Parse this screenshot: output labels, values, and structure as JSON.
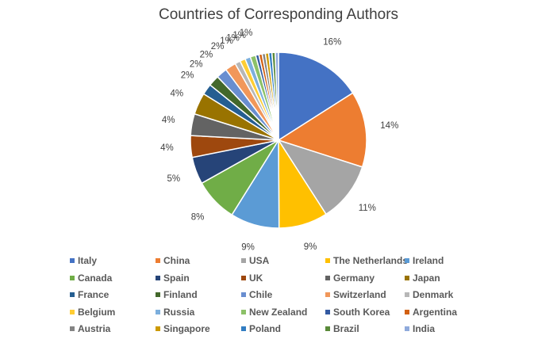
{
  "chart_data": {
    "type": "pie",
    "title": "Countries of Corresponding Authors",
    "legend_position": "bottom",
    "slices": [
      {
        "name": "Italy",
        "value": 16,
        "label": "16%",
        "color": "#4472C4"
      },
      {
        "name": "China",
        "value": 14,
        "label": "14%",
        "color": "#ED7D31"
      },
      {
        "name": "USA",
        "value": 11,
        "label": "11%",
        "color": "#A5A5A5"
      },
      {
        "name": "The Netherlands",
        "value": 9,
        "label": "9%",
        "color": "#FFC000"
      },
      {
        "name": "Ireland",
        "value": 9,
        "label": "9%",
        "color": "#5B9BD5"
      },
      {
        "name": "Canada",
        "value": 8,
        "label": "8%",
        "color": "#70AD47"
      },
      {
        "name": "Spain",
        "value": 5,
        "label": "5%",
        "color": "#264478"
      },
      {
        "name": "UK",
        "value": 4,
        "label": "4%",
        "color": "#9E480E"
      },
      {
        "name": "Germany",
        "value": 4,
        "label": "4%",
        "color": "#636363"
      },
      {
        "name": "Japan",
        "value": 4,
        "label": "4%",
        "color": "#997300"
      },
      {
        "name": "France",
        "value": 2,
        "label": "2%",
        "color": "#255E91"
      },
      {
        "name": "Finland",
        "value": 2,
        "label": "2%",
        "color": "#43682B"
      },
      {
        "name": "Chile",
        "value": 2,
        "label": "2%",
        "color": "#698ED0"
      },
      {
        "name": "Switzerland",
        "value": 2,
        "label": "2%",
        "color": "#F1975A"
      },
      {
        "name": "Denmark",
        "value": 1,
        "label": "1%",
        "color": "#B7B7B7"
      },
      {
        "name": "Belgium",
        "value": 1,
        "label": "1%",
        "color": "#FFCD33"
      },
      {
        "name": "Russia",
        "value": 1,
        "label": "1%",
        "color": "#7CAFDD"
      },
      {
        "name": "New Zealand",
        "value": 1,
        "label": "1%",
        "color": "#8CC168"
      },
      {
        "name": "South Korea",
        "value": 0.6,
        "label": "",
        "color": "#335AA1"
      },
      {
        "name": "Argentina",
        "value": 0.6,
        "label": "",
        "color": "#D26012"
      },
      {
        "name": "Austria",
        "value": 0.6,
        "label": "",
        "color": "#848484"
      },
      {
        "name": "Singapore",
        "value": 0.6,
        "label": "",
        "color": "#CC9A00"
      },
      {
        "name": "Poland",
        "value": 0.6,
        "label": "",
        "color": "#327DC2"
      },
      {
        "name": "Brazil",
        "value": 0.6,
        "label": "",
        "color": "#5A8A39"
      },
      {
        "name": "India",
        "value": 0.6,
        "label": "",
        "color": "#8FAADC"
      }
    ]
  }
}
